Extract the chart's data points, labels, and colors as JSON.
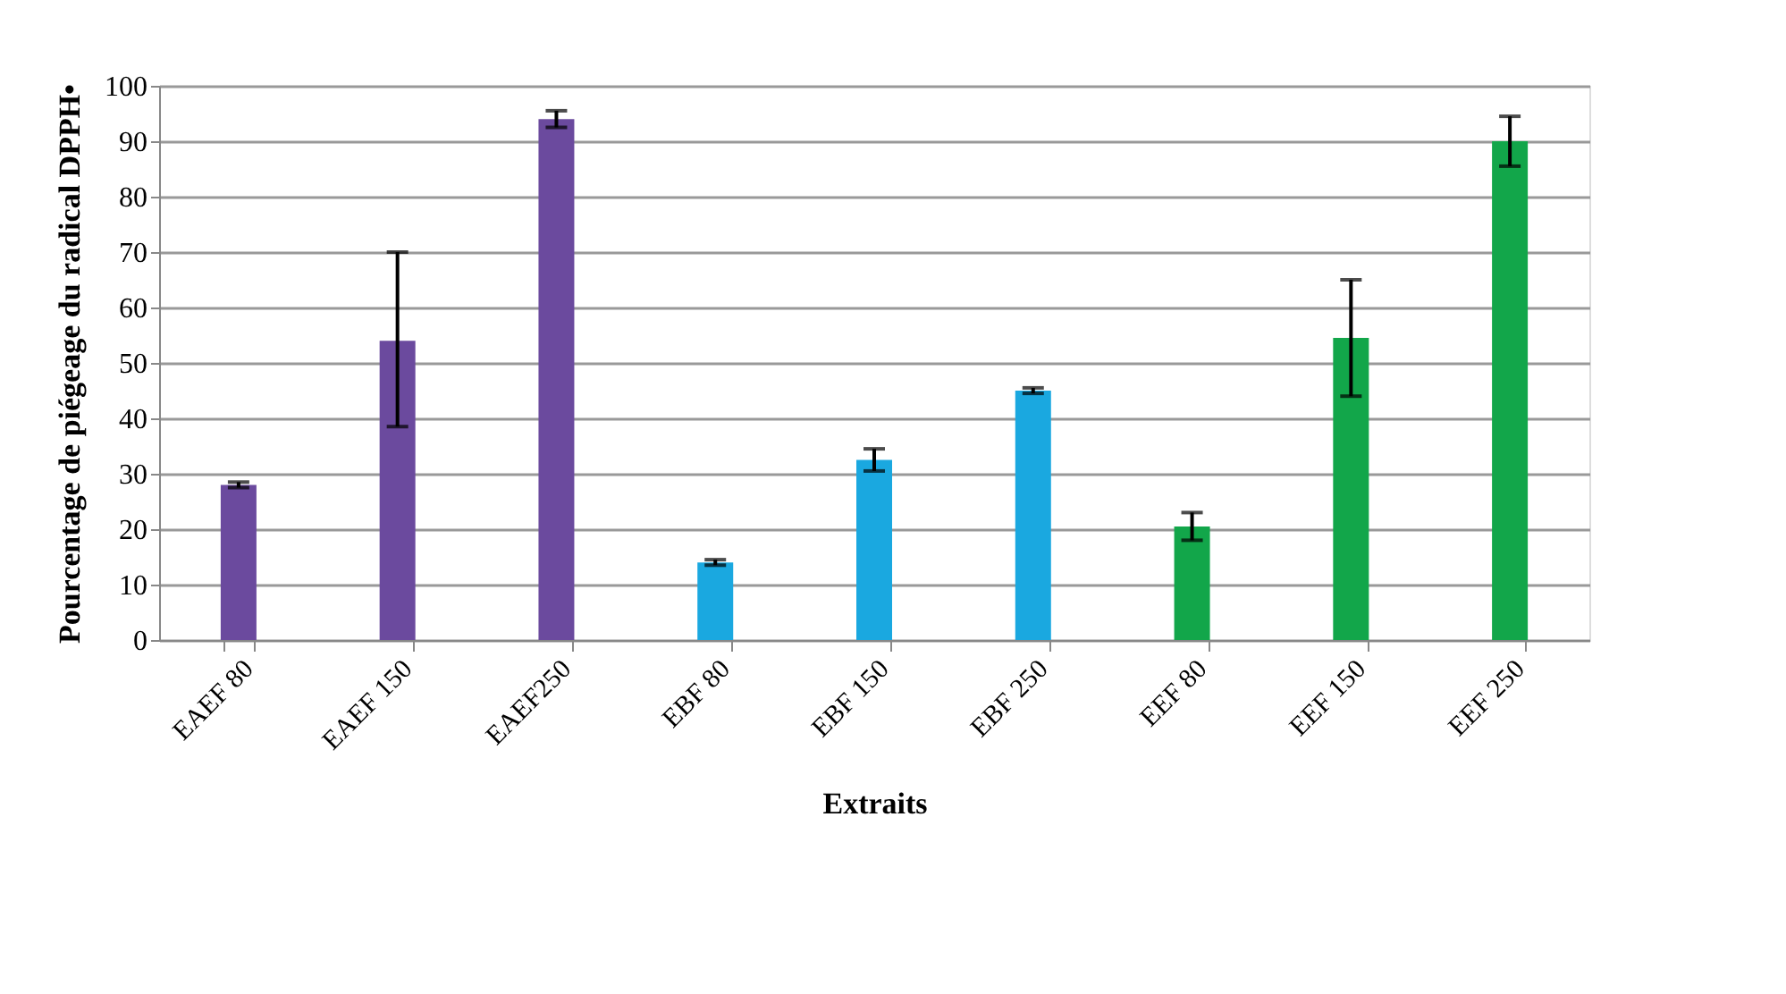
{
  "chart_data": {
    "type": "bar",
    "xlabel": "Extraits",
    "ylabel": "Pourcentage de piégeage du radical DPPH•",
    "categories": [
      "EAEF 80",
      "EAEF 150",
      "EAEF250",
      "EBF 80",
      "EBF 150",
      "EBF 250",
      "EEF 80",
      "EEF 150",
      "EEF 250"
    ],
    "values": [
      28,
      54,
      94,
      14,
      32.5,
      45,
      20.5,
      54.5,
      90
    ],
    "colors": [
      "#6b4a9e",
      "#6b4a9e",
      "#6b4a9e",
      "#1aa8e0",
      "#1aa8e0",
      "#1aa8e0",
      "#12a64a",
      "#12a64a",
      "#12a64a"
    ],
    "errors": [
      0.5,
      [
        38.5,
        70
      ],
      1.5,
      0.5,
      2,
      0.5,
      2.5,
      [
        44,
        65
      ],
      4.5
    ],
    "ylim": [
      0,
      100
    ],
    "yticks": [
      0,
      10,
      20,
      30,
      40,
      50,
      60,
      70,
      80,
      90,
      100
    ],
    "grid": "y",
    "legend": false
  }
}
